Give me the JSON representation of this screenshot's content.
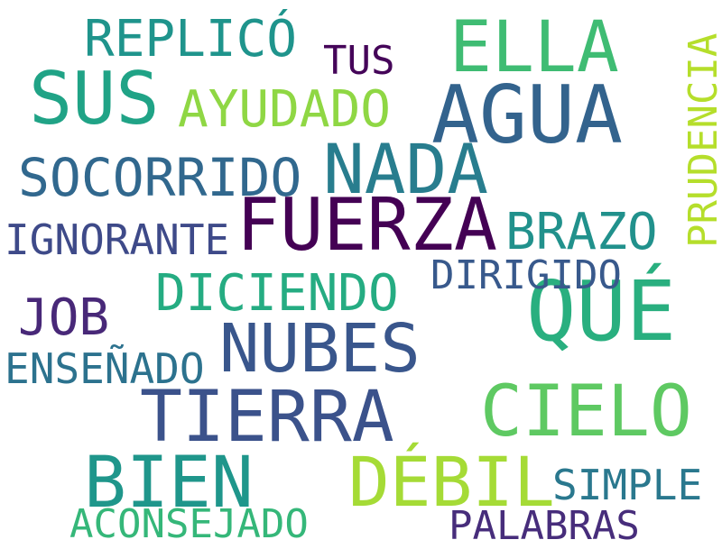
{
  "words": {
    "agua": {
      "text": "AGUA",
      "color": "#33638d"
    },
    "fuerza": {
      "text": "FUERZA",
      "color": "#440154"
    },
    "que": {
      "text": "QUÉ",
      "color": "#29af7f"
    },
    "nubes": {
      "text": "NUBES",
      "color": "#39568c"
    },
    "tierra": {
      "text": "TIERRA",
      "color": "#3b528b"
    },
    "cielo": {
      "text": "CIELO",
      "color": "#5ec962"
    },
    "debil": {
      "text": "DÉBIL",
      "color": "#a5db36"
    },
    "bien": {
      "text": "BIEN",
      "color": "#1f968b"
    },
    "ella": {
      "text": "ELLA",
      "color": "#3fbc73"
    },
    "sus": {
      "text": "SUS",
      "color": "#20a386"
    },
    "nada": {
      "text": "NADA",
      "color": "#287d8e"
    },
    "replico": {
      "text": "REPLICÓ",
      "color": "#1f948c"
    },
    "socorrido": {
      "text": "SOCORRIDO",
      "color": "#31688e"
    },
    "ayudado": {
      "text": "AYUDADO",
      "color": "#8fd744"
    },
    "prudencia": {
      "text": "PRUDENCIA",
      "color": "#b5de2b"
    },
    "brazo": {
      "text": "BRAZO",
      "color": "#21918c"
    },
    "ignorante": {
      "text": "IGNORANTE",
      "color": "#3e4a89"
    },
    "dirigido": {
      "text": "DIRIGIDO",
      "color": "#38598c"
    },
    "diciendo": {
      "text": "DICIENDO",
      "color": "#25ac82"
    },
    "job": {
      "text": "JOB",
      "color": "#482878"
    },
    "ensenado": {
      "text": "ENSEÑADO",
      "color": "#2c728e"
    },
    "simple": {
      "text": "SIMPLE",
      "color": "#2a788e"
    },
    "aconsejado": {
      "text": "ACONSEJADO",
      "color": "#35b779"
    },
    "palabras": {
      "text": "PALABRAS",
      "color": "#472d7b"
    },
    "tus": {
      "text": "TUS",
      "color": "#450559"
    }
  }
}
